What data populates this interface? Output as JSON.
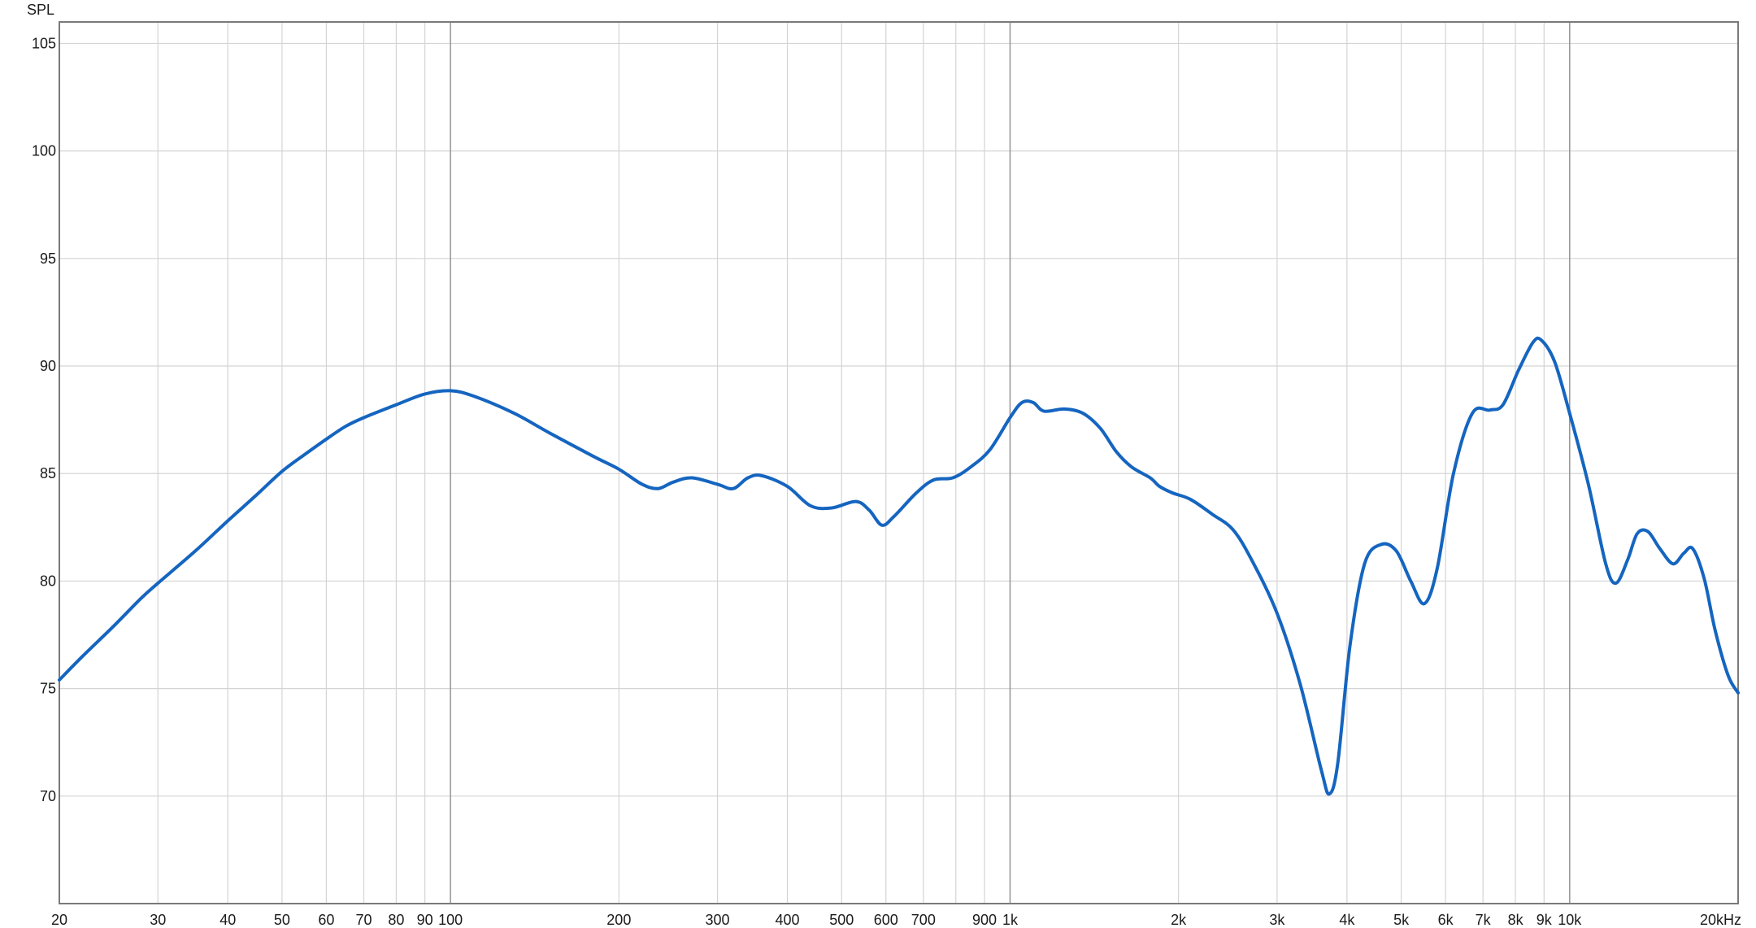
{
  "chart_data": {
    "type": "line",
    "title": "",
    "ylabel": "SPL",
    "xlabel": "",
    "x_scale": "log",
    "xlim": [
      20,
      20000
    ],
    "ylim": [
      65,
      106
    ],
    "grid": true,
    "legend": "none",
    "line_color": "#1565c0",
    "y_ticks": [
      {
        "value": 70,
        "label": "70"
      },
      {
        "value": 75,
        "label": "75"
      },
      {
        "value": 80,
        "label": "80"
      },
      {
        "value": 85,
        "label": "85"
      },
      {
        "value": 90,
        "label": "90"
      },
      {
        "value": 95,
        "label": "95"
      },
      {
        "value": 100,
        "label": "100"
      },
      {
        "value": 105,
        "label": "105"
      }
    ],
    "x_ticks": [
      {
        "value": 20,
        "label": "20"
      },
      {
        "value": 30,
        "label": "30"
      },
      {
        "value": 40,
        "label": "40"
      },
      {
        "value": 50,
        "label": "50"
      },
      {
        "value": 60,
        "label": "60"
      },
      {
        "value": 70,
        "label": "70"
      },
      {
        "value": 80,
        "label": "80"
      },
      {
        "value": 90,
        "label": "90"
      },
      {
        "value": 100,
        "label": "100"
      },
      {
        "value": 200,
        "label": "200"
      },
      {
        "value": 300,
        "label": "300"
      },
      {
        "value": 400,
        "label": "400"
      },
      {
        "value": 500,
        "label": "500"
      },
      {
        "value": 600,
        "label": "600"
      },
      {
        "value": 700,
        "label": "700"
      },
      {
        "value": 900,
        "label": "900"
      },
      {
        "value": 1000,
        "label": "1k"
      },
      {
        "value": 2000,
        "label": "2k"
      },
      {
        "value": 3000,
        "label": "3k"
      },
      {
        "value": 4000,
        "label": "4k"
      },
      {
        "value": 5000,
        "label": "5k"
      },
      {
        "value": 6000,
        "label": "6k"
      },
      {
        "value": 7000,
        "label": "7k"
      },
      {
        "value": 8000,
        "label": "8k"
      },
      {
        "value": 9000,
        "label": "9k"
      },
      {
        "value": 10000,
        "label": "10k"
      },
      {
        "value": 20000,
        "label": "20kHz"
      }
    ],
    "x_grid": [
      20,
      30,
      40,
      50,
      60,
      70,
      80,
      90,
      100,
      200,
      300,
      400,
      500,
      600,
      700,
      800,
      900,
      1000,
      2000,
      3000,
      4000,
      5000,
      6000,
      7000,
      8000,
      9000,
      10000,
      20000
    ],
    "x_major": [
      100,
      1000,
      10000
    ],
    "series": [
      {
        "points": [
          [
            20,
            75.4
          ],
          [
            22,
            76.5
          ],
          [
            25,
            77.9
          ],
          [
            28,
            79.2
          ],
          [
            30,
            79.9
          ],
          [
            35,
            81.4
          ],
          [
            40,
            82.8
          ],
          [
            45,
            84.0
          ],
          [
            50,
            85.1
          ],
          [
            55,
            85.9
          ],
          [
            60,
            86.6
          ],
          [
            65,
            87.2
          ],
          [
            70,
            87.6
          ],
          [
            80,
            88.2
          ],
          [
            90,
            88.7
          ],
          [
            100,
            88.85
          ],
          [
            110,
            88.6
          ],
          [
            130,
            87.8
          ],
          [
            150,
            86.9
          ],
          [
            180,
            85.8
          ],
          [
            200,
            85.2
          ],
          [
            220,
            84.5
          ],
          [
            235,
            84.3
          ],
          [
            250,
            84.6
          ],
          [
            270,
            84.8
          ],
          [
            300,
            84.5
          ],
          [
            320,
            84.3
          ],
          [
            340,
            84.8
          ],
          [
            360,
            84.9
          ],
          [
            400,
            84.4
          ],
          [
            440,
            83.5
          ],
          [
            480,
            83.4
          ],
          [
            530,
            83.7
          ],
          [
            560,
            83.3
          ],
          [
            590,
            82.6
          ],
          [
            620,
            83.0
          ],
          [
            680,
            84.1
          ],
          [
            730,
            84.7
          ],
          [
            790,
            84.8
          ],
          [
            850,
            85.3
          ],
          [
            920,
            86.1
          ],
          [
            1000,
            87.6
          ],
          [
            1050,
            88.3
          ],
          [
            1100,
            88.3
          ],
          [
            1150,
            87.9
          ],
          [
            1250,
            88.0
          ],
          [
            1350,
            87.8
          ],
          [
            1450,
            87.1
          ],
          [
            1550,
            86.0
          ],
          [
            1650,
            85.3
          ],
          [
            1780,
            84.8
          ],
          [
            1850,
            84.4
          ],
          [
            1950,
            84.1
          ],
          [
            2100,
            83.8
          ],
          [
            2300,
            83.1
          ],
          [
            2500,
            82.4
          ],
          [
            2700,
            81.0
          ],
          [
            3000,
            78.5
          ],
          [
            3300,
            75.2
          ],
          [
            3600,
            71.2
          ],
          [
            3720,
            70.1
          ],
          [
            3850,
            71.5
          ],
          [
            4050,
            77.0
          ],
          [
            4300,
            80.8
          ],
          [
            4600,
            81.7
          ],
          [
            4900,
            81.4
          ],
          [
            5200,
            80.0
          ],
          [
            5500,
            78.95
          ],
          [
            5800,
            80.6
          ],
          [
            6200,
            85.0
          ],
          [
            6700,
            87.8
          ],
          [
            7200,
            87.95
          ],
          [
            7600,
            88.2
          ],
          [
            8100,
            89.8
          ],
          [
            8600,
            91.1
          ],
          [
            8900,
            91.2
          ],
          [
            9400,
            90.2
          ],
          [
            10000,
            87.8
          ],
          [
            10800,
            84.5
          ],
          [
            11600,
            80.8
          ],
          [
            12100,
            79.9
          ],
          [
            12700,
            81.0
          ],
          [
            13200,
            82.2
          ],
          [
            13800,
            82.3
          ],
          [
            14500,
            81.5
          ],
          [
            15300,
            80.8
          ],
          [
            16000,
            81.3
          ],
          [
            16600,
            81.5
          ],
          [
            17400,
            80.1
          ],
          [
            18200,
            77.7
          ],
          [
            19200,
            75.6
          ],
          [
            20000,
            74.8
          ]
        ]
      }
    ]
  }
}
